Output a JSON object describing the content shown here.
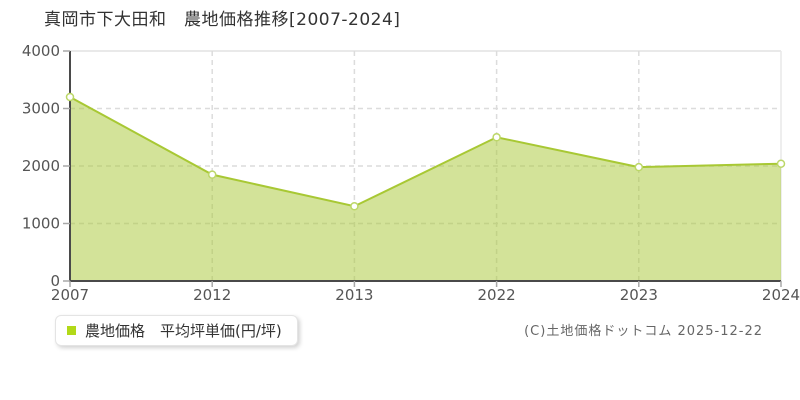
{
  "chart_data": {
    "type": "area",
    "title": "真岡市下大田和　農地価格推移[2007-2024]",
    "categories": [
      "2007",
      "2012",
      "2013",
      "2022",
      "2023",
      "2024"
    ],
    "values": [
      3200,
      1850,
      1300,
      2500,
      1980,
      2040
    ],
    "series_name": "農地価格 平均坪単価(円/坪)",
    "xlabel": "",
    "ylabel": "",
    "ylim": [
      0,
      4000
    ],
    "yticks": [
      0,
      1000,
      2000,
      3000,
      4000
    ],
    "x_axis_type": "category-evenly-spaced",
    "grid": "dashed horizontal and vertical gridlines",
    "legend_position": "bottom-left",
    "point_style": "hollow circle"
  },
  "legend": {
    "label": "農地価格　平均坪単価(円/坪)"
  },
  "footer": {
    "copyright": "(C)土地価格ドットコム 2025-12-22"
  },
  "colors": {
    "series_line": "#a8c834",
    "series_fill": "#a8c834",
    "series_fill_opacity": 0.5,
    "point_fill": "#ffffff",
    "point_stroke": "#bcd768",
    "legend_marker": "#b2d918",
    "axis": "#4a4a4a",
    "tick": "#a8a8a8",
    "grid": "#dcdcdc",
    "plot_border": "#e9e9e9",
    "axis_label": "#555555",
    "title_text": "#333333",
    "copyright_text": "#666666"
  }
}
